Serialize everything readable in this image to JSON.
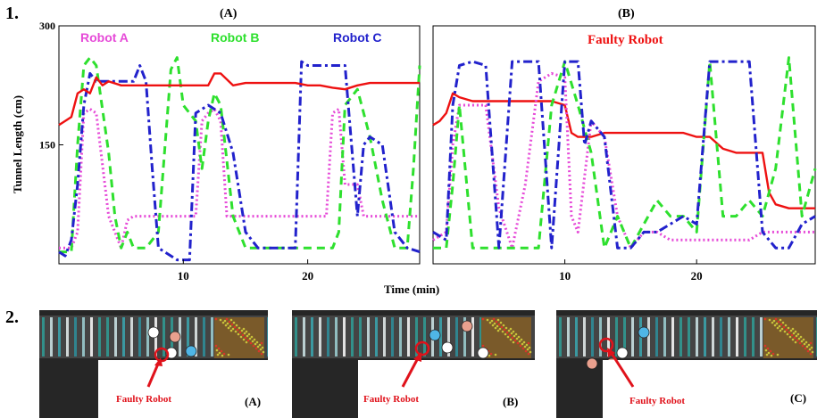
{
  "figure": {
    "part1_label": "1.",
    "part2_label": "2."
  },
  "chart_data": [
    {
      "type": "line",
      "panel_label": "(A)",
      "xlabel": "Time (min)",
      "ylabel": "Tunnel Length (cm)",
      "xticks": [
        10,
        20
      ],
      "yticks": [
        150,
        300
      ],
      "xlim": [
        0,
        29
      ],
      "ylim": [
        0,
        300
      ],
      "series": [
        {
          "name": "Robot A",
          "color": "#e64ad8",
          "dash": "dotted",
          "x": [
            0,
            1,
            1.5,
            2,
            2.5,
            3,
            4,
            5,
            5.5,
            6,
            7,
            9,
            10,
            11,
            11.5,
            12,
            12.5,
            13,
            13.5,
            14,
            16,
            18,
            19,
            20,
            21,
            21.5,
            22,
            22.5,
            23,
            24,
            24.5,
            25,
            26,
            27,
            28,
            29
          ],
          "y": [
            20,
            20,
            40,
            190,
            195,
            190,
            60,
            20,
            55,
            60,
            60,
            60,
            60,
            60,
            180,
            190,
            195,
            180,
            60,
            60,
            60,
            60,
            60,
            60,
            60,
            60,
            190,
            195,
            100,
            100,
            60,
            60,
            60,
            60,
            60,
            60
          ]
        },
        {
          "name": "Robot B",
          "color": "#2ee02e",
          "dash": "dashed",
          "x": [
            0,
            1,
            1.5,
            2,
            2.5,
            3,
            4,
            4.5,
            5,
            5.5,
            6,
            7,
            8,
            9,
            9.5,
            10,
            11,
            11.5,
            12,
            12.5,
            13,
            14,
            15,
            16,
            17,
            18,
            19,
            20,
            21,
            22,
            22.5,
            23,
            24,
            25,
            26,
            27,
            28,
            28.5,
            29
          ],
          "y": [
            15,
            15,
            150,
            250,
            260,
            250,
            140,
            60,
            20,
            40,
            20,
            20,
            40,
            245,
            260,
            200,
            180,
            120,
            180,
            215,
            200,
            60,
            20,
            20,
            20,
            20,
            20,
            20,
            20,
            20,
            40,
            200,
            220,
            160,
            80,
            20,
            20,
            120,
            250
          ]
        },
        {
          "name": "Robot C",
          "color": "#2222cc",
          "dash": "dashdot",
          "x": [
            0,
            0.5,
            1,
            1.5,
            2,
            2.5,
            3,
            4,
            5,
            6,
            6.5,
            7,
            7.5,
            8,
            9,
            9.5,
            10,
            10.5,
            11,
            12,
            13,
            14,
            15,
            16,
            17,
            18,
            19,
            19.5,
            20,
            21,
            22,
            23,
            24,
            24.5,
            25,
            26,
            27,
            28,
            29
          ],
          "y": [
            15,
            10,
            30,
            100,
            200,
            240,
            230,
            230,
            230,
            230,
            250,
            230,
            120,
            20,
            10,
            5,
            5,
            5,
            190,
            200,
            190,
            140,
            40,
            20,
            20,
            20,
            20,
            255,
            250,
            250,
            250,
            250,
            60,
            150,
            160,
            150,
            40,
            20,
            15
          ]
        },
        {
          "name": "",
          "color": "#ee1111",
          "dash": "solid",
          "x": [
            0,
            0.5,
            1,
            1.5,
            2,
            2.5,
            3,
            3.5,
            4,
            5,
            6,
            7,
            8,
            9,
            10,
            11,
            12,
            12.5,
            13,
            14,
            15,
            16,
            17,
            18,
            19,
            20,
            21,
            22,
            23,
            24,
            25,
            26,
            27,
            28,
            29
          ],
          "y": [
            175,
            180,
            185,
            215,
            220,
            215,
            235,
            225,
            230,
            225,
            225,
            225,
            225,
            225,
            225,
            225,
            225,
            240,
            240,
            225,
            228,
            228,
            228,
            228,
            228,
            225,
            225,
            222,
            220,
            225,
            228,
            228,
            228,
            228,
            228
          ]
        }
      ],
      "legend_labels": [
        "Robot A",
        "Robot B",
        "Robot C"
      ]
    },
    {
      "type": "line",
      "panel_label": "(B)",
      "xticks": [
        10,
        20
      ],
      "xlim": [
        0,
        29
      ],
      "ylim": [
        0,
        300
      ],
      "series": [
        {
          "name": "Faulty Robot",
          "color": "#ee1111",
          "dash": "solid",
          "x": [
            0,
            0.5,
            1,
            1.5,
            2,
            3,
            4,
            5,
            6,
            7,
            8,
            9,
            10,
            10.5,
            11,
            12,
            13,
            14,
            15,
            16,
            17,
            18,
            19,
            20,
            21,
            22,
            23,
            24,
            25,
            25.5,
            26,
            27,
            28,
            29
          ],
          "y": [
            175,
            180,
            190,
            215,
            210,
            205,
            205,
            205,
            205,
            205,
            205,
            205,
            200,
            165,
            160,
            160,
            165,
            165,
            165,
            165,
            165,
            165,
            165,
            160,
            160,
            145,
            140,
            140,
            140,
            90,
            75,
            70,
            70,
            70
          ]
        },
        {
          "name": "",
          "color": "#e64ad8",
          "dash": "dotted",
          "x": [
            0,
            1,
            1.5,
            2,
            3,
            4,
            5,
            6,
            7,
            8,
            9,
            10,
            10.5,
            11,
            12,
            13,
            14,
            15,
            16,
            17,
            18,
            19,
            20,
            21,
            22,
            23,
            24,
            25,
            26,
            27,
            28,
            29
          ],
          "y": [
            30,
            40,
            150,
            200,
            200,
            200,
            70,
            20,
            100,
            230,
            240,
            235,
            60,
            40,
            180,
            160,
            60,
            20,
            40,
            40,
            30,
            30,
            30,
            30,
            30,
            30,
            30,
            40,
            40,
            40,
            40,
            40
          ]
        },
        {
          "name": "",
          "color": "#2ee02e",
          "dash": "dashed",
          "x": [
            0,
            1,
            1.5,
            2,
            3,
            4,
            5,
            6,
            7,
            8,
            9,
            10,
            11,
            12,
            13,
            14,
            15,
            16,
            17,
            18,
            19,
            20,
            21,
            22,
            23,
            24,
            25,
            26,
            27,
            28,
            29
          ],
          "y": [
            20,
            20,
            100,
            200,
            20,
            20,
            20,
            20,
            20,
            20,
            200,
            255,
            200,
            140,
            20,
            60,
            20,
            50,
            80,
            60,
            60,
            40,
            255,
            60,
            60,
            80,
            60,
            120,
            260,
            60,
            120
          ]
        },
        {
          "name": "",
          "color": "#2222cc",
          "dash": "dashdot",
          "x": [
            0,
            1,
            1.5,
            2,
            3,
            4,
            5,
            6,
            7,
            8,
            9,
            10,
            11,
            11.5,
            12,
            12.5,
            13,
            14,
            15,
            16,
            17,
            18,
            19,
            20,
            21,
            22,
            23,
            24,
            25,
            26,
            27,
            28,
            29
          ],
          "y": [
            40,
            30,
            200,
            250,
            255,
            250,
            20,
            255,
            255,
            255,
            20,
            255,
            255,
            150,
            180,
            170,
            160,
            20,
            20,
            40,
            40,
            50,
            60,
            50,
            255,
            255,
            255,
            255,
            40,
            20,
            20,
            50,
            60
          ]
        }
      ],
      "legend_labels": [
        "Faulty Robot"
      ]
    }
  ],
  "photos": [
    {
      "label": "(A)",
      "annotation": "Faulty Robot"
    },
    {
      "label": "(B)",
      "annotation": "Faulty Robot"
    },
    {
      "label": "(C)",
      "annotation": "Faulty Robot"
    }
  ]
}
